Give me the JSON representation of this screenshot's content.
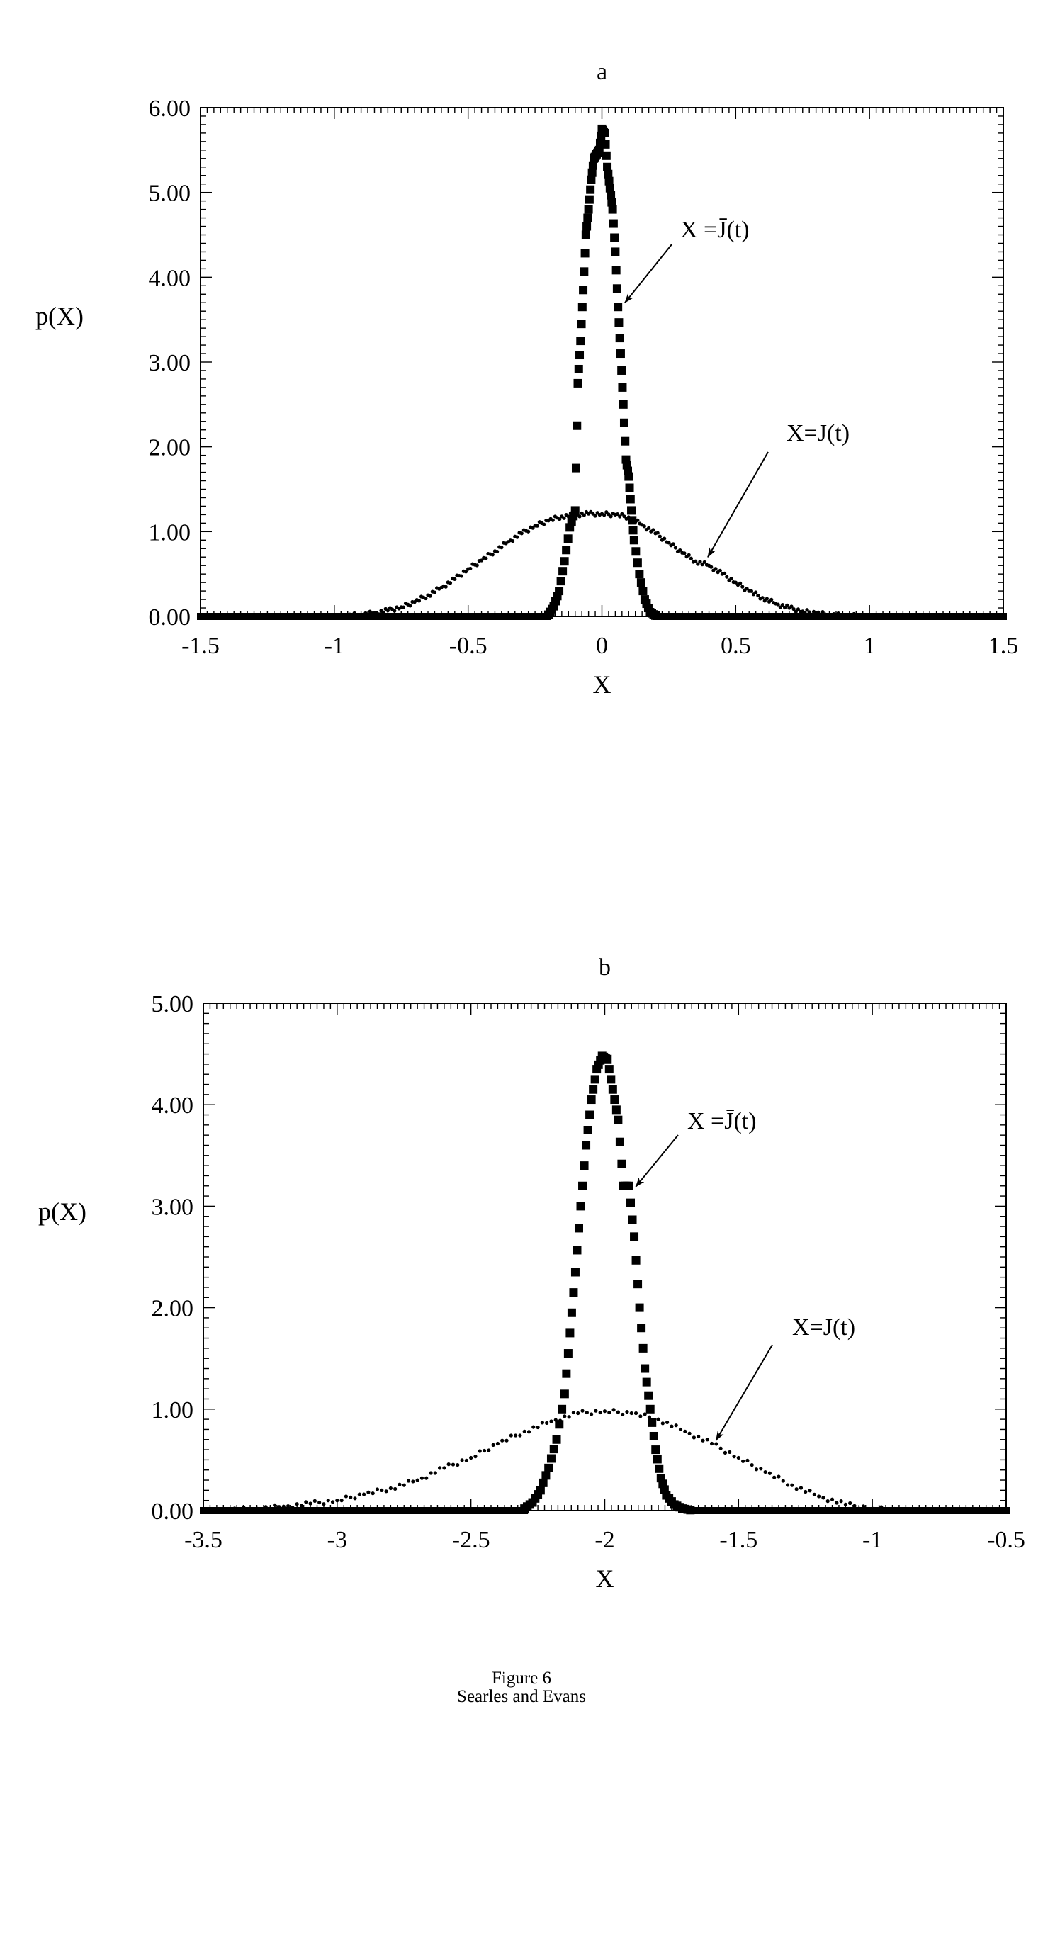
{
  "caption": {
    "line1": "Figure 6",
    "line2": "Searles and Evans"
  },
  "chart_data": [
    {
      "type": "scatter",
      "panel_label": "a",
      "xlabel": "X",
      "ylabel": "p(X)",
      "xlim": [
        -1.5,
        1.5
      ],
      "ylim": [
        0,
        6
      ],
      "x_ticks": [
        "-1.5",
        "-1",
        "-0.5",
        "0",
        "0.5",
        "1",
        "1.5"
      ],
      "x_tick_values": [
        -1.5,
        -1,
        -0.5,
        0,
        0.5,
        1,
        1.5
      ],
      "y_ticks": [
        "0.00",
        "1.00",
        "2.00",
        "3.00",
        "4.00",
        "5.00",
        "6.00"
      ],
      "y_tick_values": [
        0,
        1,
        2,
        3,
        4,
        5,
        6
      ],
      "series": [
        {
          "name": "X = J̄(t)",
          "marker": "square",
          "x": [
            -0.2,
            -0.18,
            -0.16,
            -0.14,
            -0.12,
            -0.1,
            -0.09,
            -0.08,
            -0.07,
            -0.06,
            -0.05,
            -0.04,
            -0.03,
            -0.02,
            -0.01,
            0,
            0.01,
            0.02,
            0.03,
            0.04,
            0.05,
            0.06,
            0.07,
            0.08,
            0.09,
            0.1,
            0.11,
            0.12,
            0.14,
            0.16,
            0.18,
            0.2
          ],
          "y": [
            0.02,
            0.12,
            0.3,
            0.65,
            1.05,
            1.25,
            2.75,
            3.25,
            3.85,
            4.5,
            4.8,
            5.15,
            5.4,
            5.45,
            5.5,
            5.75,
            5.7,
            5.3,
            5.05,
            4.8,
            4.3,
            3.65,
            3.1,
            2.5,
            1.85,
            1.65,
            1.25,
            0.9,
            0.5,
            0.2,
            0.05,
            0.01
          ]
        },
        {
          "name": "X=J(t)",
          "marker": "dot",
          "x": [
            -0.95,
            -0.9,
            -0.85,
            -0.8,
            -0.75,
            -0.7,
            -0.65,
            -0.6,
            -0.55,
            -0.5,
            -0.45,
            -0.4,
            -0.35,
            -0.3,
            -0.25,
            -0.2,
            -0.15,
            -0.1,
            -0.05,
            0,
            0.05,
            0.1,
            0.15,
            0.2,
            0.25,
            0.3,
            0.35,
            0.4,
            0.45,
            0.5,
            0.55,
            0.6,
            0.65,
            0.7,
            0.75,
            0.8,
            0.85,
            0.9,
            0.95
          ],
          "y": [
            0.01,
            0.02,
            0.04,
            0.07,
            0.11,
            0.17,
            0.25,
            0.34,
            0.44,
            0.56,
            0.66,
            0.77,
            0.88,
            0.98,
            1.07,
            1.13,
            1.18,
            1.2,
            1.21,
            1.21,
            1.2,
            1.17,
            1.08,
            0.98,
            0.87,
            0.75,
            0.65,
            0.6,
            0.5,
            0.4,
            0.3,
            0.22,
            0.15,
            0.1,
            0.06,
            0.04,
            0.02,
            0.01,
            0.005
          ]
        }
      ],
      "annotations": [
        {
          "text": "X =J̄(t)",
          "points_to": [
            0.07,
            3.65
          ]
        },
        {
          "text": "X=J(t)",
          "points_to": [
            0.38,
            0.65
          ]
        }
      ]
    },
    {
      "type": "scatter",
      "panel_label": "b",
      "xlabel": "X",
      "ylabel": "p(X)",
      "xlim": [
        -3.5,
        -0.5
      ],
      "ylim": [
        0,
        5
      ],
      "x_ticks": [
        "-3.5",
        "-3",
        "-2.5",
        "-2",
        "-1.5",
        "-1",
        "-0.5"
      ],
      "x_tick_values": [
        -3.5,
        -3,
        -2.5,
        -2,
        -1.5,
        -1,
        -0.5
      ],
      "y_ticks": [
        "0.00",
        "1.00",
        "2.00",
        "3.00",
        "4.00",
        "5.00"
      ],
      "y_tick_values": [
        0,
        1,
        2,
        3,
        4,
        5
      ],
      "series": [
        {
          "name": "X = J̄(t)",
          "marker": "square",
          "x": [
            -2.3,
            -2.27,
            -2.24,
            -2.21,
            -2.18,
            -2.15,
            -2.13,
            -2.11,
            -2.09,
            -2.07,
            -2.05,
            -2.03,
            -2.01,
            -1.99,
            -1.97,
            -1.95,
            -1.93,
            -1.91,
            -1.89,
            -1.87,
            -1.85,
            -1.83,
            -1.81,
            -1.79,
            -1.77,
            -1.74,
            -1.71,
            -1.68
          ],
          "y": [
            0.02,
            0.08,
            0.2,
            0.42,
            0.7,
            1.15,
            1.75,
            2.35,
            3.0,
            3.6,
            4.05,
            4.35,
            4.48,
            4.45,
            4.15,
            3.85,
            3.2,
            3.2,
            2.7,
            2.0,
            1.4,
            1.0,
            0.6,
            0.32,
            0.15,
            0.06,
            0.02,
            0.005
          ]
        },
        {
          "name": "X=J(t)",
          "marker": "dot",
          "x": [
            -3.4,
            -3.3,
            -3.2,
            -3.1,
            -3.0,
            -2.9,
            -2.8,
            -2.7,
            -2.6,
            -2.5,
            -2.4,
            -2.3,
            -2.2,
            -2.1,
            -2.0,
            -1.9,
            -1.8,
            -1.7,
            -1.6,
            -1.5,
            -1.4,
            -1.3,
            -1.2,
            -1.1,
            -1.0,
            -0.9
          ],
          "y": [
            0.01,
            0.02,
            0.04,
            0.07,
            0.1,
            0.16,
            0.22,
            0.3,
            0.42,
            0.52,
            0.66,
            0.78,
            0.88,
            0.96,
            0.98,
            0.96,
            0.9,
            0.78,
            0.66,
            0.52,
            0.38,
            0.25,
            0.14,
            0.06,
            0.02,
            0.005
          ]
        }
      ],
      "annotations": [
        {
          "text": "X =J̄(t)",
          "points_to": [
            -1.9,
            3.15
          ]
        },
        {
          "text": "X=J(t)",
          "points_to": [
            -1.6,
            0.65
          ]
        }
      ]
    }
  ]
}
